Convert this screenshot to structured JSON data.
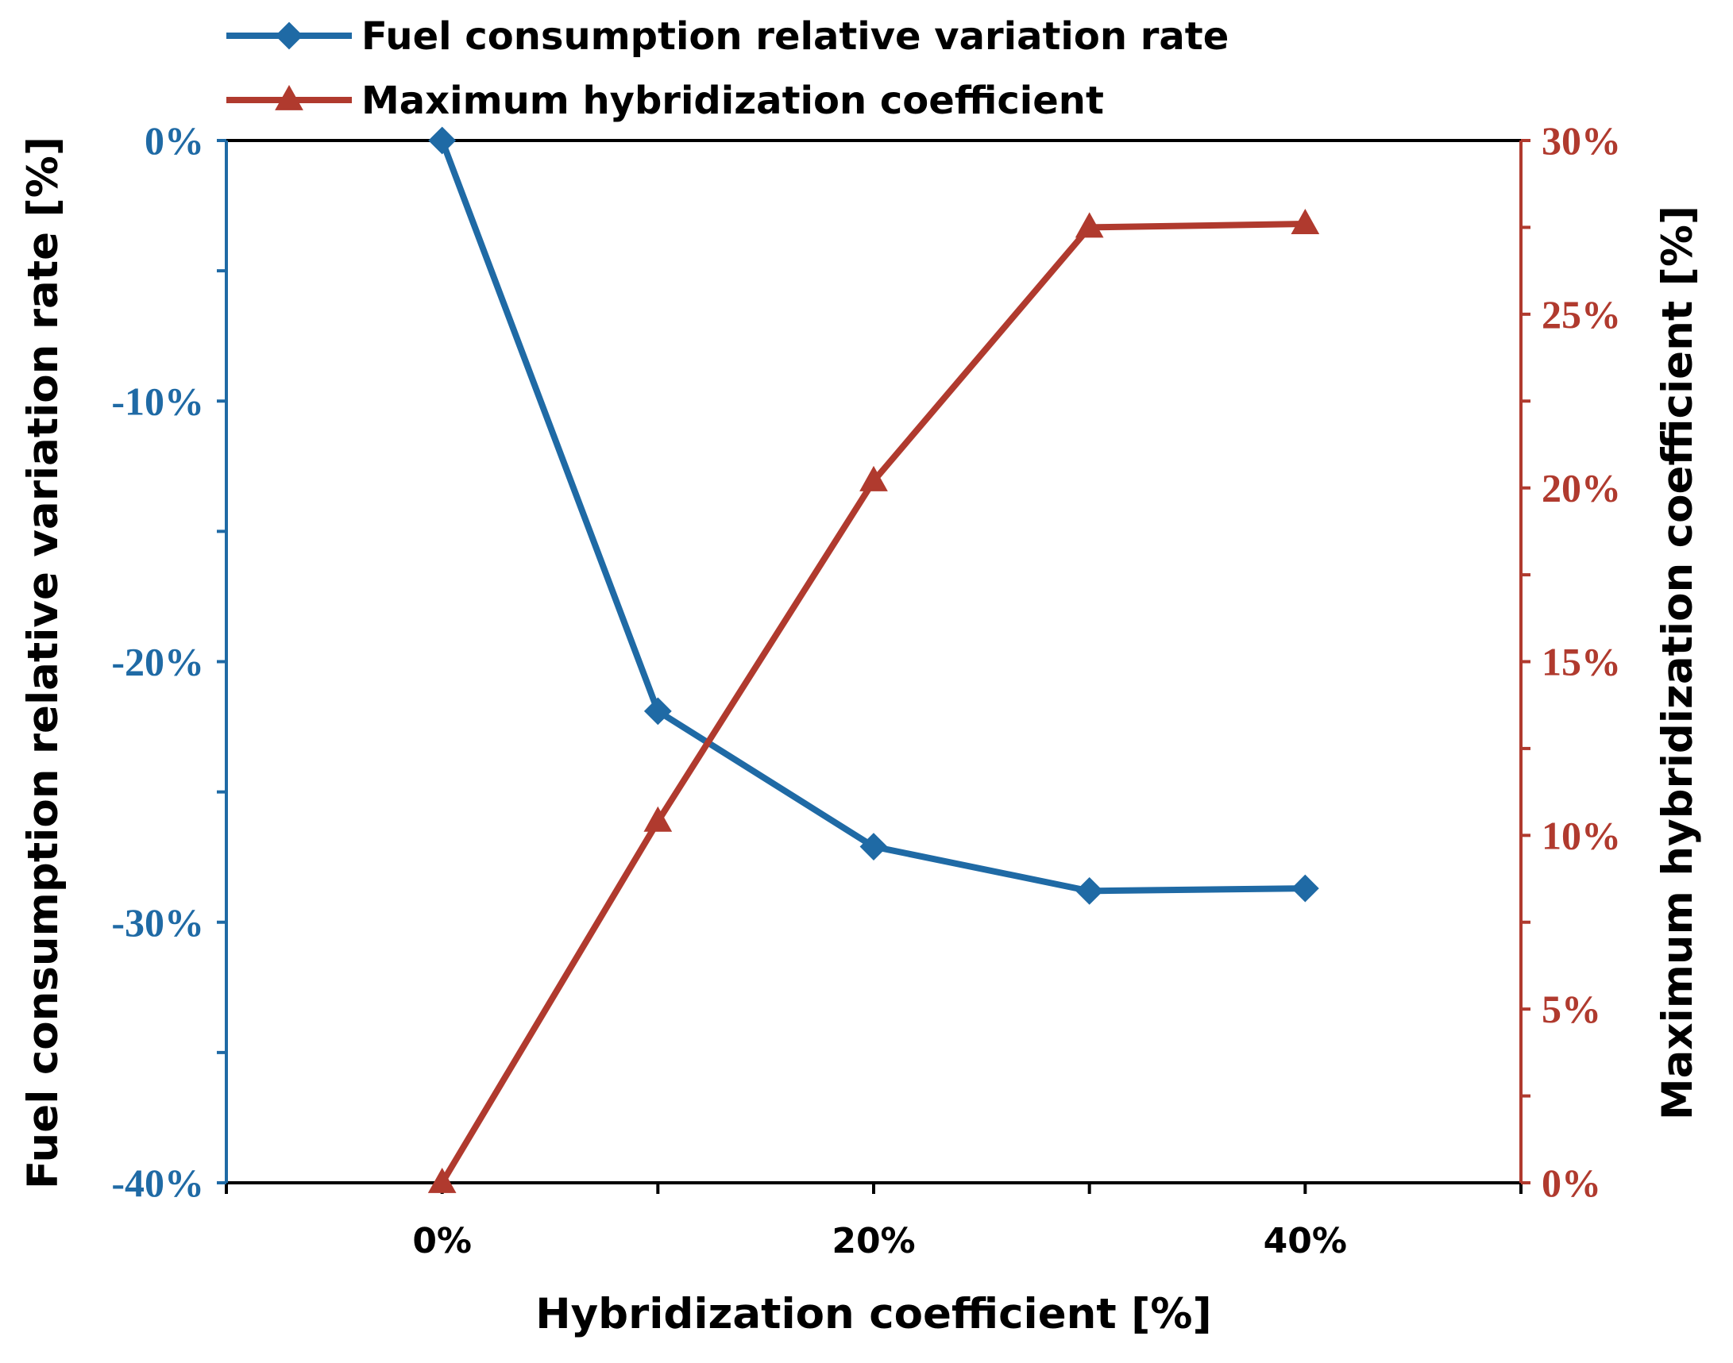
{
  "chart_data": {
    "type": "line",
    "xlabel": "Hybridization coefficient [%]",
    "ylabel_left": "Fuel consumption relative variation rate [%]",
    "ylabel_right": "Maximum hybridization coefficient [%]",
    "x": [
      0,
      10,
      20,
      30,
      40
    ],
    "xlim": [
      -10,
      50
    ],
    "x_ticks": [
      0,
      20,
      40
    ],
    "x_tick_labels": [
      "0%",
      "20%",
      "40%"
    ],
    "y_left_lim": [
      -40,
      0
    ],
    "y_left_ticks": [
      0,
      -10,
      -20,
      -30,
      -40
    ],
    "y_left_tick_labels": [
      "0%",
      "-10%",
      "-20%",
      "-30%",
      "-40%"
    ],
    "y_right_lim": [
      0,
      30
    ],
    "y_right_ticks": [
      30,
      25,
      20,
      15,
      10,
      5,
      0
    ],
    "y_right_tick_labels": [
      "30%",
      "25%",
      "20%",
      "15%",
      "10%",
      "5%",
      "0%"
    ],
    "series": [
      {
        "name": "Fuel consumption relative variation rate",
        "axis": "left",
        "marker": "diamond",
        "color": "#1f6aa5",
        "values": [
          0,
          -21.9,
          -27.1,
          -28.8,
          -28.7
        ]
      },
      {
        "name": "Maximum hybridization coefficient",
        "axis": "right",
        "marker": "triangle",
        "color": "#b03a2e",
        "values": [
          0,
          10.4,
          20.2,
          27.5,
          27.6
        ]
      }
    ],
    "legend_position": "top-left",
    "grid": false
  }
}
